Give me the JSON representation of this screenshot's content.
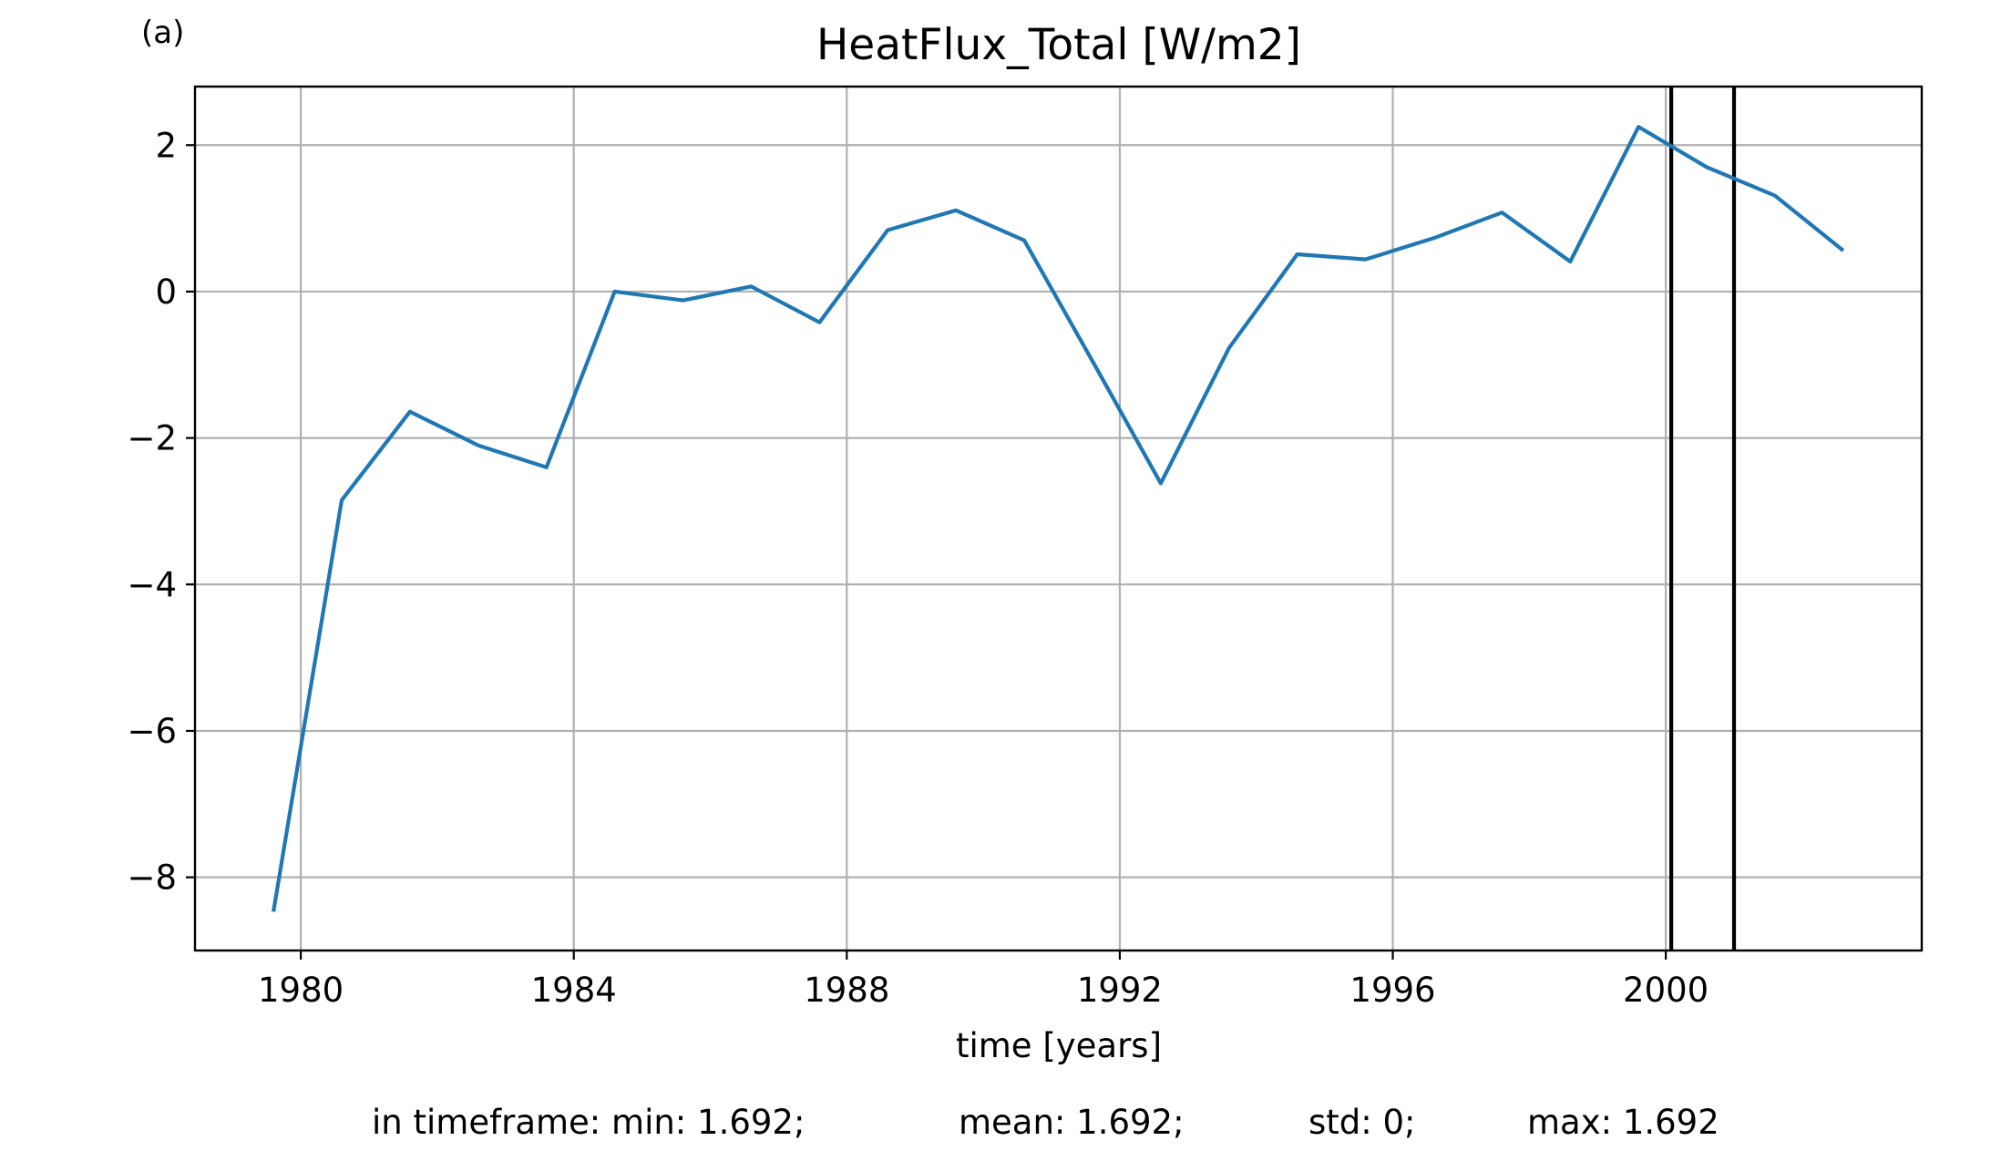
{
  "chart_data": {
    "type": "line",
    "panel_label": "(a)",
    "title": "HeatFlux_Total [W/m2]",
    "xlabel": "time [years]",
    "ylabel": "",
    "xlim": [
      1978.45,
      2003.75
    ],
    "ylim": [
      -9.0,
      2.8
    ],
    "x_scale": "linear",
    "grid": true,
    "xticks": [
      1980,
      1984,
      1988,
      1992,
      1996,
      2000
    ],
    "xtick_labels": [
      "1980",
      "1984",
      "1988",
      "1992",
      "1996",
      "2000"
    ],
    "yticks": [
      2,
      0,
      -2,
      -4,
      -6,
      -8
    ],
    "ytick_labels": [
      "2",
      "0",
      "−2",
      "−4",
      "−6",
      "−8"
    ],
    "series": [
      {
        "color": "#1f77b4",
        "x": [
          1979.6,
          1980.6,
          1981.6,
          1982.6,
          1983.6,
          1984.6,
          1985.6,
          1986.6,
          1987.6,
          1988.6,
          1989.6,
          1990.6,
          1991.6,
          1992.6,
          1993.6,
          1994.6,
          1995.6,
          1996.6,
          1997.6,
          1998.6,
          1999.6,
          2000.6,
          2001.6,
          2002.6
        ],
        "y": [
          -8.47,
          -2.85,
          -1.64,
          -2.1,
          -2.4,
          0.0,
          -0.12,
          0.07,
          -0.42,
          0.84,
          1.11,
          0.7,
          -0.95,
          -2.62,
          -0.77,
          0.51,
          0.44,
          0.73,
          1.08,
          0.41,
          2.25,
          1.7,
          1.31,
          0.56
        ]
      }
    ],
    "vlines": [
      {
        "x": 2000.08,
        "color": "#000000"
      },
      {
        "x": 2001.0,
        "color": "#000000"
      }
    ],
    "footer": {
      "min_text": "in timeframe: min: 1.692;",
      "mean_text": "mean: 1.692;",
      "std_text": "std: 0;",
      "max_text": "max: 1.692"
    }
  }
}
